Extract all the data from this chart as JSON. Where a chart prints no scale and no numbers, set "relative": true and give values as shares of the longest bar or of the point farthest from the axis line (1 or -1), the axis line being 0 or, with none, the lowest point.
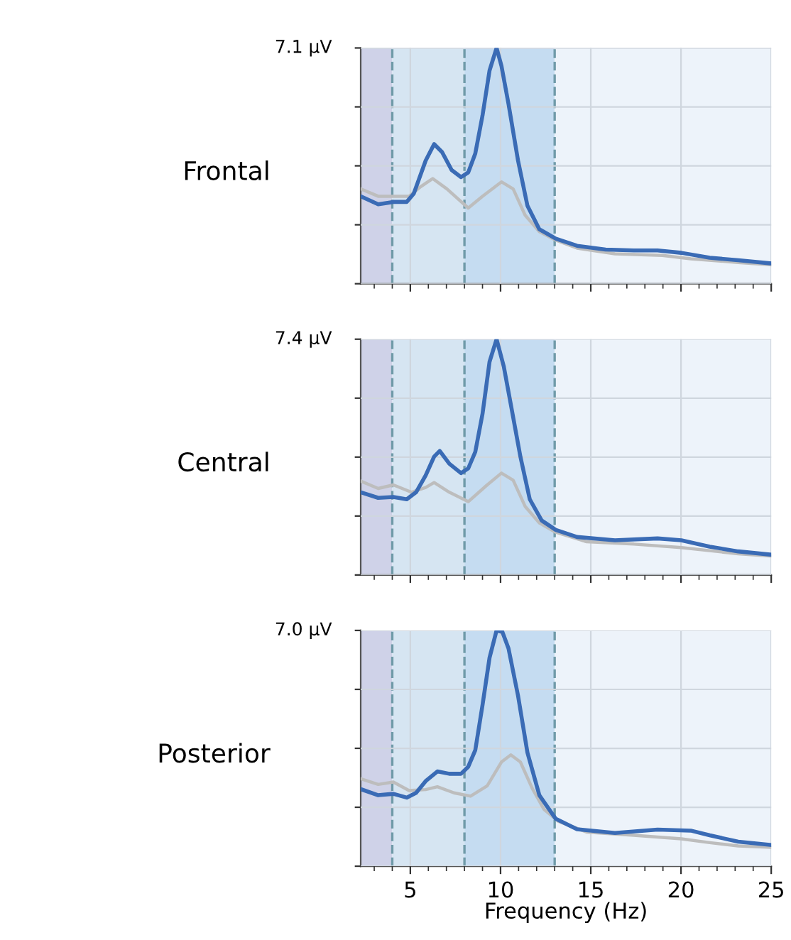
{
  "chart_data": [
    {
      "type": "line",
      "title": "Frontal",
      "relative": true,
      "annotations": [
        "7.1 µV"
      ],
      "xlim": [
        2.25,
        25
      ],
      "xticks": [
        {
          "value": 3,
          "label": null
        },
        {
          "value": 4,
          "label": null
        },
        5,
        {
          "value": 6,
          "label": null
        },
        {
          "value": 7,
          "label": null
        },
        {
          "value": 8,
          "label": null
        },
        {
          "value": 9,
          "label": null
        },
        10,
        {
          "value": 11,
          "label": null
        },
        {
          "value": 12,
          "label": null
        },
        {
          "value": 13,
          "label": null
        },
        {
          "value": 14,
          "label": null
        },
        15,
        {
          "value": 16,
          "label": null
        },
        {
          "value": 17,
          "label": null
        },
        {
          "value": 18,
          "label": null
        },
        {
          "value": 19,
          "label": null
        },
        20,
        {
          "value": 21,
          "label": null
        },
        {
          "value": 22,
          "label": null
        },
        {
          "value": 23,
          "label": null
        },
        {
          "value": 24,
          "label": null
        },
        25
      ],
      "tick_labels": false,
      "grid": true,
      "marker": "none",
      "line_style": "solid",
      "bands": [
        {
          "axis": "x",
          "from": 2.25,
          "to": 4,
          "color": "#cfd2e8"
        },
        {
          "axis": "x",
          "from": 4,
          "to": 8,
          "color": "#d6e5f2"
        },
        {
          "axis": "x",
          "from": 8,
          "to": 13,
          "color": "#c5dcf1"
        },
        {
          "axis": "x",
          "from": 13,
          "to": 25,
          "color": "#edf3fa"
        }
      ],
      "series": [
        {
          "color": "#bdbdbd",
          "x": [
            2.25,
            3.22,
            4.06,
            4.93,
            5.58,
            6.24,
            7.03,
            8.21,
            9.0,
            10.05,
            10.7,
            11.36,
            12.15,
            13.06,
            14.24,
            16.34,
            18.97,
            20.54,
            23.17,
            25
          ],
          "values": [
            0.402,
            0.371,
            0.371,
            0.371,
            0.412,
            0.446,
            0.402,
            0.321,
            0.371,
            0.432,
            0.402,
            0.291,
            0.221,
            0.185,
            0.151,
            0.127,
            0.12,
            0.106,
            0.09,
            0.08
          ]
        },
        {
          "color": "#3a6bb5",
          "x": [
            2.25,
            3.22,
            4.06,
            4.8,
            5.19,
            5.85,
            6.32,
            6.76,
            7.29,
            7.81,
            8.21,
            8.6,
            9.0,
            9.39,
            9.78,
            10.05,
            10.44,
            10.97,
            11.49,
            12.15,
            13.06,
            14.24,
            15.82,
            17.39,
            18.7,
            20.02,
            21.59,
            23.17,
            25
          ],
          "values": [
            0.371,
            0.337,
            0.347,
            0.347,
            0.382,
            0.522,
            0.592,
            0.558,
            0.482,
            0.452,
            0.472,
            0.552,
            0.713,
            0.904,
            1.0,
            0.924,
            0.763,
            0.522,
            0.331,
            0.231,
            0.191,
            0.161,
            0.145,
            0.141,
            0.141,
            0.131,
            0.11,
            0.1,
            0.086
          ]
        }
      ]
    },
    {
      "type": "line",
      "title": "Central",
      "relative": true,
      "annotations": [
        "7.4 µV"
      ],
      "xlim": [
        2.25,
        25
      ],
      "xticks": [
        {
          "value": 3,
          "label": null
        },
        {
          "value": 4,
          "label": null
        },
        5,
        {
          "value": 6,
          "label": null
        },
        {
          "value": 7,
          "label": null
        },
        {
          "value": 8,
          "label": null
        },
        {
          "value": 9,
          "label": null
        },
        10,
        {
          "value": 11,
          "label": null
        },
        {
          "value": 12,
          "label": null
        },
        {
          "value": 13,
          "label": null
        },
        {
          "value": 14,
          "label": null
        },
        15,
        {
          "value": 16,
          "label": null
        },
        {
          "value": 17,
          "label": null
        },
        {
          "value": 18,
          "label": null
        },
        {
          "value": 19,
          "label": null
        },
        20,
        {
          "value": 21,
          "label": null
        },
        {
          "value": 22,
          "label": null
        },
        {
          "value": 23,
          "label": null
        },
        {
          "value": 24,
          "label": null
        },
        25
      ],
      "tick_labels": false,
      "grid": true,
      "marker": "none",
      "line_style": "solid",
      "bands": [
        {
          "axis": "x",
          "from": 2.25,
          "to": 4,
          "color": "#cfd2e8"
        },
        {
          "axis": "x",
          "from": 4,
          "to": 8,
          "color": "#d6e5f2"
        },
        {
          "axis": "x",
          "from": 8,
          "to": 13,
          "color": "#c5dcf1"
        },
        {
          "axis": "x",
          "from": 13,
          "to": 25,
          "color": "#edf3fa"
        }
      ],
      "series": [
        {
          "color": "#bdbdbd",
          "x": [
            2.25,
            3.22,
            4.06,
            5.06,
            5.85,
            6.32,
            7.16,
            8.21,
            9.26,
            10.05,
            10.7,
            11.36,
            12.15,
            13.06,
            14.77,
            17.39,
            20.02,
            23.17,
            25
          ],
          "values": [
            0.398,
            0.367,
            0.382,
            0.351,
            0.371,
            0.392,
            0.351,
            0.311,
            0.382,
            0.432,
            0.402,
            0.291,
            0.221,
            0.181,
            0.141,
            0.131,
            0.116,
            0.09,
            0.08
          ]
        },
        {
          "color": "#3a6bb5",
          "x": [
            2.25,
            3.22,
            4.06,
            4.8,
            5.32,
            5.85,
            6.32,
            6.63,
            7.16,
            7.81,
            8.21,
            8.6,
            9.0,
            9.39,
            9.78,
            10.18,
            10.57,
            11.1,
            11.62,
            12.28,
            13.06,
            14.24,
            16.34,
            18.7,
            20.02,
            21.59,
            23.17,
            25
          ],
          "values": [
            0.351,
            0.327,
            0.331,
            0.321,
            0.351,
            0.422,
            0.502,
            0.526,
            0.472,
            0.432,
            0.452,
            0.522,
            0.683,
            0.904,
            1.0,
            0.884,
            0.723,
            0.502,
            0.321,
            0.231,
            0.191,
            0.161,
            0.147,
            0.155,
            0.147,
            0.12,
            0.1,
            0.086
          ]
        }
      ]
    },
    {
      "type": "line",
      "title": "Posterior",
      "xlabel": "Frequency (Hz)",
      "relative": true,
      "annotations": [
        "7.0 µV"
      ],
      "xlim": [
        2.25,
        25
      ],
      "xticks": [
        {
          "value": 3,
          "label": null
        },
        {
          "value": 4,
          "label": null
        },
        5,
        {
          "value": 6,
          "label": null
        },
        {
          "value": 7,
          "label": null
        },
        {
          "value": 8,
          "label": null
        },
        {
          "value": 9,
          "label": null
        },
        10,
        {
          "value": 11,
          "label": null
        },
        {
          "value": 12,
          "label": null
        },
        {
          "value": 13,
          "label": null
        },
        {
          "value": 14,
          "label": null
        },
        15,
        {
          "value": 16,
          "label": null
        },
        {
          "value": 17,
          "label": null
        },
        {
          "value": 18,
          "label": null
        },
        {
          "value": 19,
          "label": null
        },
        20,
        {
          "value": 21,
          "label": null
        },
        {
          "value": 22,
          "label": null
        },
        {
          "value": 23,
          "label": null
        },
        {
          "value": 24,
          "label": null
        },
        25
      ],
      "tick_labels": "x",
      "grid": true,
      "marker": "none",
      "line_style": "solid",
      "bands": [
        {
          "axis": "x",
          "from": 2.25,
          "to": 4,
          "color": "#cfd2e8"
        },
        {
          "axis": "x",
          "from": 4,
          "to": 8,
          "color": "#d6e5f2"
        },
        {
          "axis": "x",
          "from": 8,
          "to": 13,
          "color": "#c5dcf1"
        },
        {
          "axis": "x",
          "from": 13,
          "to": 25,
          "color": "#edf3fa"
        }
      ],
      "series": [
        {
          "color": "#bdbdbd",
          "x": [
            2.25,
            3.22,
            4.06,
            4.93,
            5.85,
            6.5,
            7.42,
            8.34,
            9.26,
            10.05,
            10.57,
            11.1,
            11.75,
            12.41,
            13.19,
            14.77,
            17.39,
            20.02,
            21.59,
            23.17,
            25
          ],
          "values": [
            0.371,
            0.347,
            0.357,
            0.321,
            0.325,
            0.337,
            0.311,
            0.297,
            0.341,
            0.442,
            0.472,
            0.442,
            0.331,
            0.241,
            0.191,
            0.145,
            0.131,
            0.116,
            0.1,
            0.086,
            0.08
          ]
        },
        {
          "color": "#3a6bb5",
          "x": [
            2.25,
            3.22,
            4.06,
            4.8,
            5.32,
            5.85,
            6.5,
            7.16,
            7.81,
            8.21,
            8.6,
            9.0,
            9.39,
            9.78,
            10.1,
            10.44,
            10.97,
            11.49,
            12.15,
            13.06,
            14.24,
            16.34,
            18.7,
            20.54,
            21.59,
            23.17,
            25
          ],
          "values": [
            0.327,
            0.301,
            0.307,
            0.291,
            0.311,
            0.361,
            0.402,
            0.392,
            0.392,
            0.422,
            0.492,
            0.683,
            0.884,
            1.0,
            0.994,
            0.924,
            0.723,
            0.482,
            0.301,
            0.201,
            0.157,
            0.141,
            0.155,
            0.151,
            0.131,
            0.104,
            0.09
          ]
        }
      ]
    }
  ]
}
